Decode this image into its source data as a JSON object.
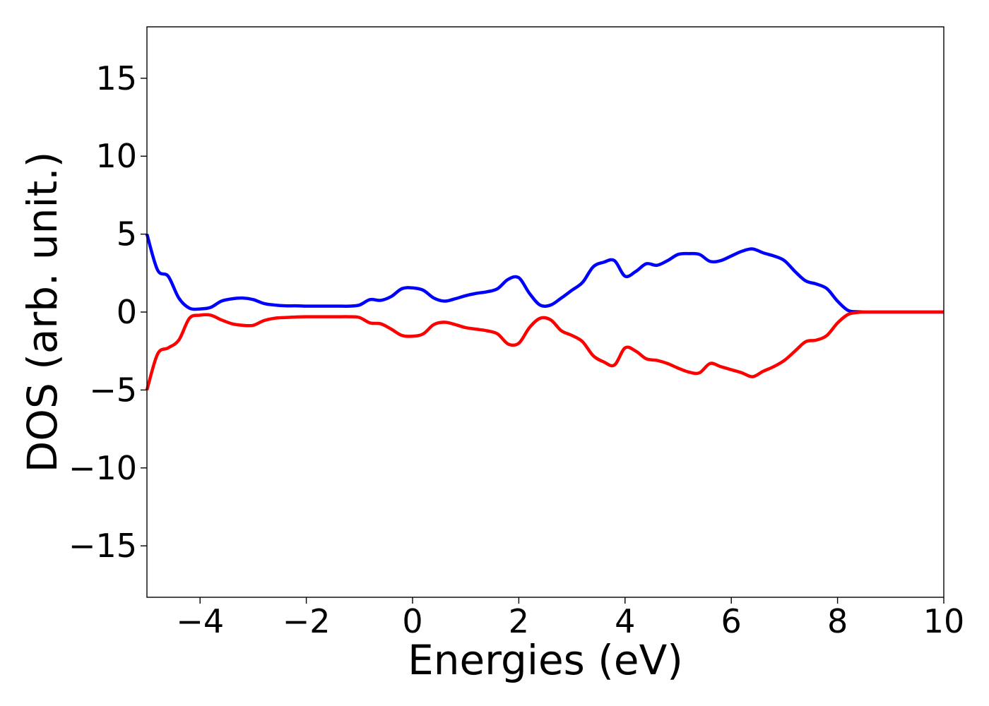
{
  "chart_data": {
    "type": "line",
    "title": "",
    "xlabel": "Energies (eV)",
    "ylabel": "DOS (arb. unit.)",
    "xlim": [
      -5,
      10
    ],
    "ylim": [
      -18.3,
      18.3
    ],
    "xticks": [
      -4,
      -2,
      0,
      2,
      4,
      6,
      8,
      10
    ],
    "xtick_labels": [
      "−4",
      "−2",
      "0",
      "2",
      "4",
      "6",
      "8",
      "10"
    ],
    "yticks": [
      -15,
      -10,
      -5,
      0,
      5,
      10,
      15
    ],
    "ytick_labels": [
      "−15",
      "−10",
      "−5",
      "0",
      "5",
      "10",
      "15"
    ],
    "grid": false,
    "legend": "none",
    "x": [
      -5.0,
      -4.8,
      -4.6,
      -4.4,
      -4.2,
      -4.0,
      -3.8,
      -3.6,
      -3.4,
      -3.2,
      -3.0,
      -2.8,
      -2.6,
      -2.4,
      -2.2,
      -2.0,
      -1.8,
      -1.6,
      -1.4,
      -1.2,
      -1.0,
      -0.8,
      -0.6,
      -0.4,
      -0.2,
      0.0,
      0.2,
      0.4,
      0.6,
      0.8,
      1.0,
      1.2,
      1.4,
      1.6,
      1.8,
      2.0,
      2.2,
      2.4,
      2.6,
      2.8,
      3.0,
      3.2,
      3.4,
      3.6,
      3.8,
      4.0,
      4.2,
      4.4,
      4.6,
      4.8,
      5.0,
      5.2,
      5.4,
      5.6,
      5.8,
      6.0,
      6.2,
      6.4,
      6.6,
      6.8,
      7.0,
      7.2,
      7.4,
      7.6,
      7.8,
      8.0,
      8.2,
      8.4,
      8.6,
      8.8,
      9.0,
      9.5,
      10.0
    ],
    "series": [
      {
        "color": "#0000ff",
        "values": [
          5.0,
          2.7,
          2.3,
          0.9,
          0.25,
          0.2,
          0.3,
          0.7,
          0.85,
          0.9,
          0.8,
          0.55,
          0.45,
          0.4,
          0.4,
          0.38,
          0.38,
          0.38,
          0.38,
          0.38,
          0.45,
          0.8,
          0.75,
          1.0,
          1.5,
          1.55,
          1.4,
          0.9,
          0.7,
          0.85,
          1.05,
          1.2,
          1.3,
          1.5,
          2.1,
          2.2,
          1.2,
          0.45,
          0.45,
          0.9,
          1.4,
          1.9,
          2.9,
          3.2,
          3.3,
          2.3,
          2.6,
          3.1,
          3.0,
          3.3,
          3.7,
          3.75,
          3.7,
          3.25,
          3.3,
          3.6,
          3.9,
          4.05,
          3.8,
          3.6,
          3.3,
          2.6,
          2.0,
          1.8,
          1.5,
          0.7,
          0.1,
          0.02,
          0.0,
          0.0,
          0.0,
          0.0,
          0.0
        ]
      },
      {
        "color": "#ff0000",
        "values": [
          -5.0,
          -2.7,
          -2.3,
          -1.8,
          -0.4,
          -0.2,
          -0.2,
          -0.5,
          -0.75,
          -0.85,
          -0.85,
          -0.55,
          -0.4,
          -0.35,
          -0.32,
          -0.3,
          -0.3,
          -0.3,
          -0.3,
          -0.3,
          -0.35,
          -0.7,
          -0.75,
          -1.1,
          -1.5,
          -1.55,
          -1.4,
          -0.8,
          -0.65,
          -0.8,
          -1.0,
          -1.1,
          -1.2,
          -1.4,
          -2.05,
          -2.0,
          -1.0,
          -0.4,
          -0.5,
          -1.2,
          -1.5,
          -1.9,
          -2.8,
          -3.2,
          -3.4,
          -2.3,
          -2.5,
          -3.0,
          -3.1,
          -3.3,
          -3.6,
          -3.85,
          -3.9,
          -3.3,
          -3.5,
          -3.7,
          -3.9,
          -4.15,
          -3.8,
          -3.5,
          -3.1,
          -2.5,
          -1.9,
          -1.8,
          -1.5,
          -0.7,
          -0.15,
          -0.02,
          0.0,
          0.0,
          0.0,
          0.0,
          0.0
        ]
      }
    ]
  }
}
